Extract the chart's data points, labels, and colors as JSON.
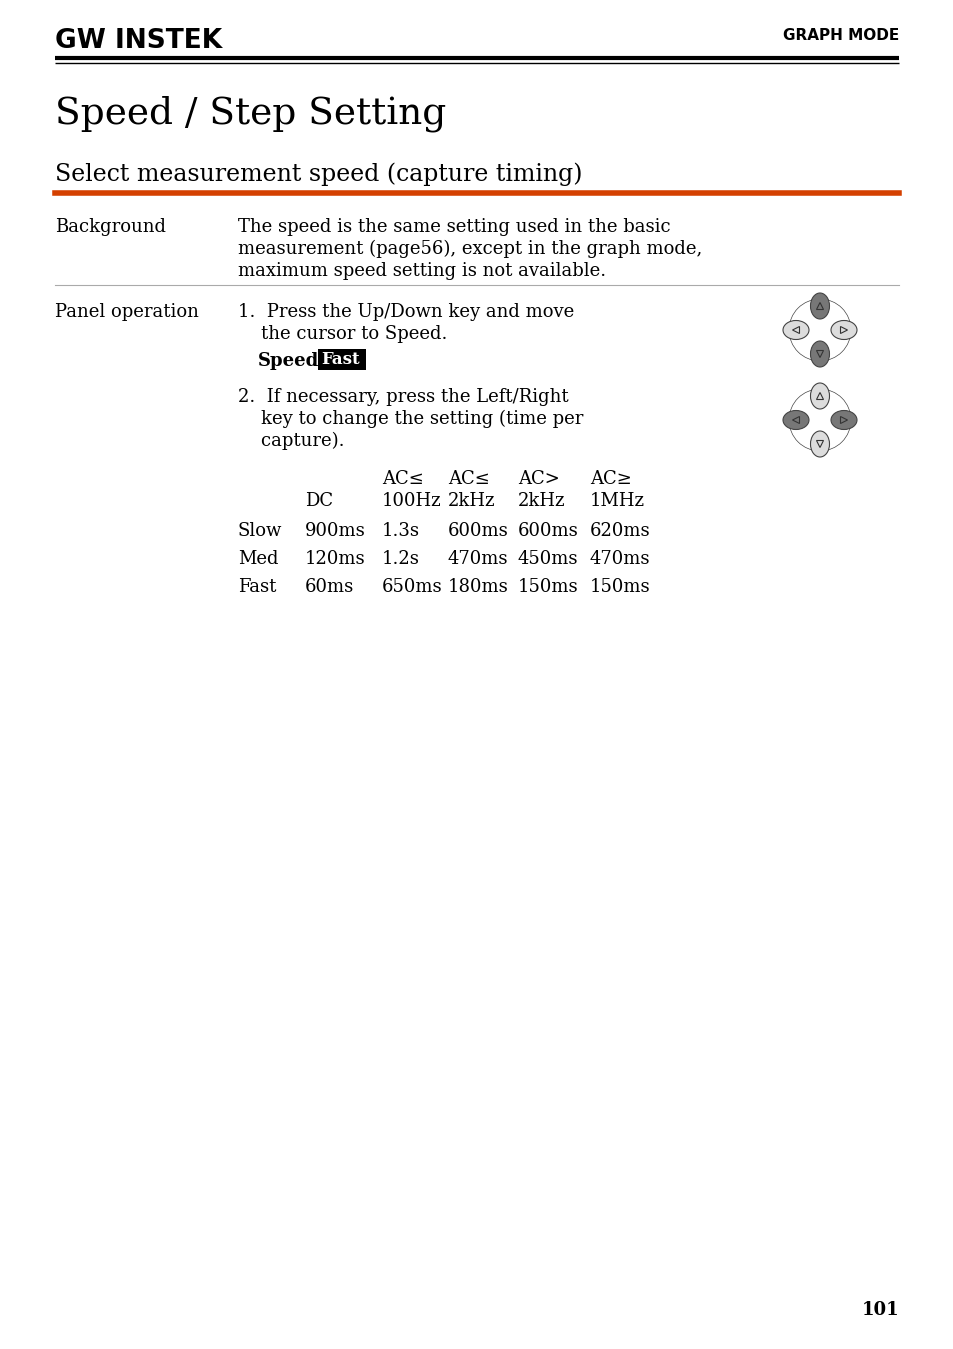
{
  "page_title": "Speed / Step Setting",
  "section_title": "Select measurement speed (capture timing)",
  "header_right": "GRAPH MODE",
  "logo_text": "GW INSTEK",
  "background_color": "#ffffff",
  "text_color": "#000000",
  "orange_line_color": "#d44000",
  "background_label": "Background",
  "background_text_lines": [
    "The speed is the same setting used in the basic",
    "measurement (page56), except in the graph mode,",
    "maximum speed setting is not available."
  ],
  "panel_label": "Panel operation",
  "step1_line1": "1.  Press the Up/Down key and move",
  "step1_line2": "    the cursor to Speed.",
  "speed_label": "Speed:",
  "speed_value": "Fast",
  "step2_line1": "2.  If necessary, press the Left/Right",
  "step2_line2": "    key to change the setting (time per",
  "step2_line3": "    capture).",
  "table_col1_header": [
    "",
    "DC"
  ],
  "table_col2_header": [
    "AC≤",
    "100Hz"
  ],
  "table_col3_header": [
    "AC≤",
    "2kHz"
  ],
  "table_col4_header": [
    "AC>",
    "2kHz"
  ],
  "table_col5_header": [
    "AC≥",
    "1MHz"
  ],
  "table_rows": [
    [
      "Slow",
      "900ms",
      "1.3s",
      "600ms",
      "600ms",
      "620ms"
    ],
    [
      "Med",
      "120ms",
      "1.2s",
      "470ms",
      "450ms",
      "470ms"
    ],
    [
      "Fast",
      "60ms",
      "650ms",
      "180ms",
      "150ms",
      "150ms"
    ]
  ],
  "page_number": "101",
  "serif": "DejaVu Serif",
  "sans": "DejaVu Sans",
  "gray_dark": "#777777",
  "gray_light": "#dddddd",
  "dpad_edge": "#444444"
}
